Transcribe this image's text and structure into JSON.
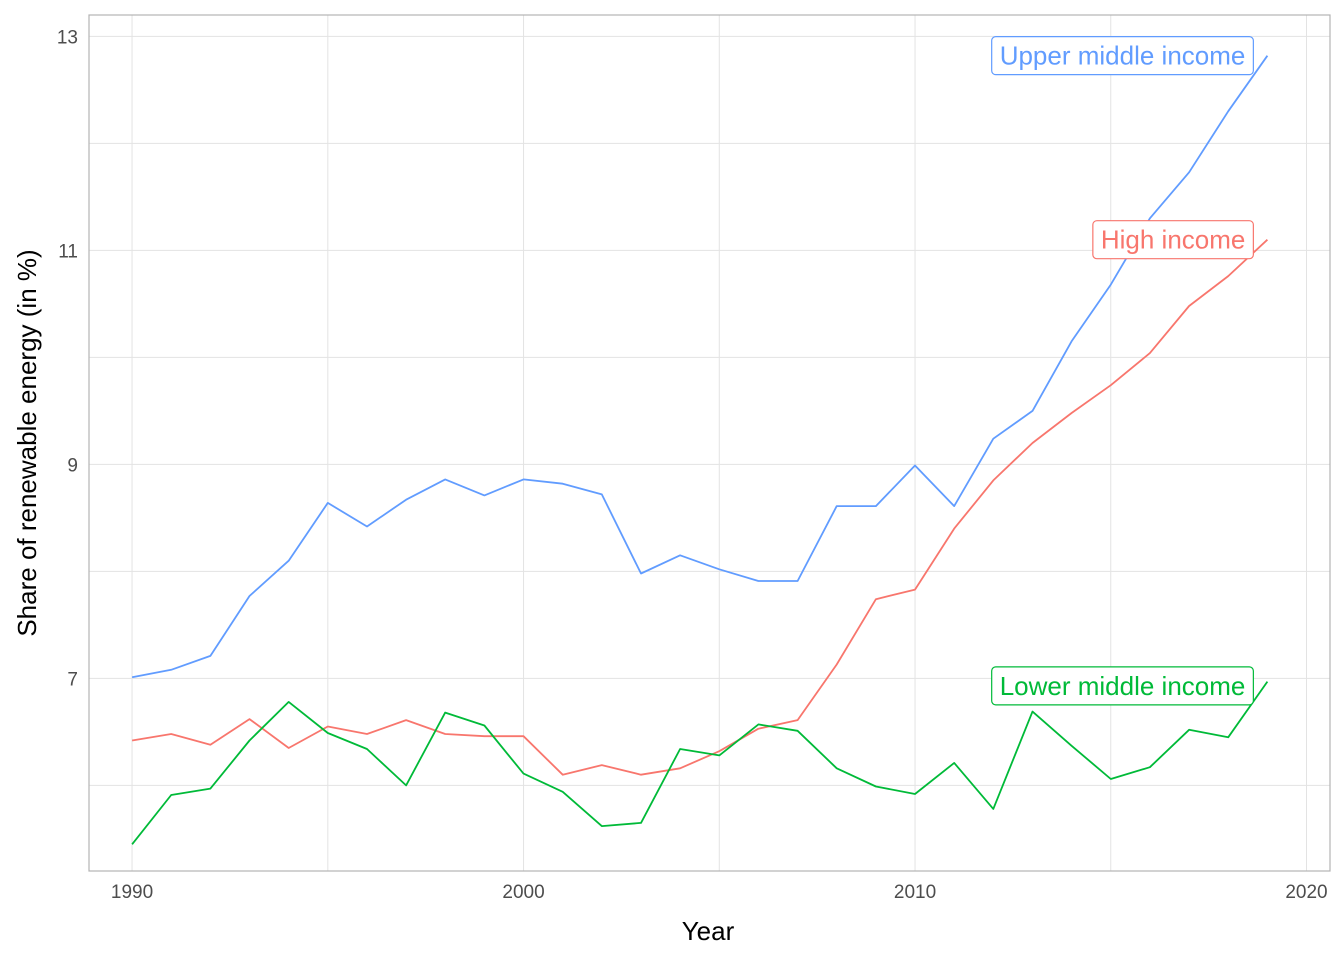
{
  "chart_data": {
    "type": "line",
    "xlabel": "Year",
    "ylabel": "Share of renewable energy (in %)",
    "xlim": [
      1988.9,
      2020.6
    ],
    "ylim": [
      5.2,
      13.2
    ],
    "x_ticks": [
      1990,
      2000,
      2010,
      2020
    ],
    "y_ticks": [
      7,
      9,
      11,
      13
    ],
    "grid": true,
    "x": [
      1990,
      1991,
      1992,
      1993,
      1994,
      1995,
      1996,
      1997,
      1998,
      1999,
      2000,
      2001,
      2002,
      2003,
      2004,
      2005,
      2006,
      2007,
      2008,
      2009,
      2010,
      2011,
      2012,
      2013,
      2014,
      2015,
      2016,
      2017,
      2018,
      2019
    ],
    "series": [
      {
        "name": "Upper middle income",
        "color": "#619CFF",
        "label_y": 12.82,
        "values": [
          7.01,
          7.08,
          7.21,
          7.77,
          8.1,
          8.64,
          8.42,
          8.67,
          8.86,
          8.71,
          8.86,
          8.82,
          8.72,
          7.98,
          8.15,
          8.02,
          7.91,
          7.91,
          8.61,
          8.61,
          8.99,
          8.61,
          9.24,
          9.5,
          10.15,
          10.68,
          11.3,
          11.73,
          12.3,
          12.82
        ]
      },
      {
        "name": "High income",
        "color": "#F8766D",
        "label_y": 11.1,
        "values": [
          6.42,
          6.48,
          6.38,
          6.62,
          6.35,
          6.55,
          6.48,
          6.61,
          6.48,
          6.46,
          6.46,
          6.1,
          6.19,
          6.1,
          6.16,
          6.32,
          6.53,
          6.61,
          7.13,
          7.74,
          7.83,
          8.4,
          8.85,
          9.2,
          9.48,
          9.74,
          10.04,
          10.48,
          10.76,
          11.1
        ]
      },
      {
        "name": "Lower middle income",
        "color": "#00BA38",
        "label_y": 6.93,
        "values": [
          5.45,
          5.91,
          5.97,
          6.42,
          6.78,
          6.49,
          6.34,
          6.0,
          6.68,
          6.56,
          6.11,
          5.94,
          5.62,
          5.65,
          6.34,
          6.28,
          6.57,
          6.51,
          6.16,
          5.99,
          5.92,
          6.21,
          5.78,
          6.69,
          6.37,
          6.06,
          6.17,
          6.52,
          6.45,
          6.97
        ]
      }
    ]
  }
}
